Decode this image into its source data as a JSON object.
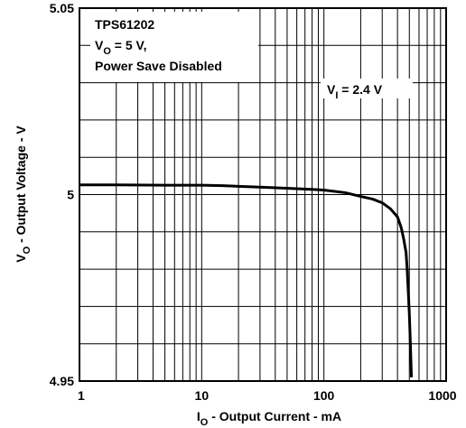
{
  "chart_data": {
    "type": "line",
    "title": "",
    "x_scale": "log",
    "xlim": [
      1,
      1000
    ],
    "ylim": [
      4.95,
      5.05
    ],
    "x_ticks": [
      {
        "value": 1,
        "label": "1"
      },
      {
        "value": 10,
        "label": "10"
      },
      {
        "value": 100,
        "label": "100"
      },
      {
        "value": 1000,
        "label": "1000"
      }
    ],
    "y_ticks": [
      {
        "value": 5.05,
        "label": "5.05"
      },
      {
        "value": 5,
        "label": "5"
      },
      {
        "value": 4.95,
        "label": "4.95"
      }
    ],
    "xlabel": {
      "main": "I",
      "sub": "O",
      "rest": " - Output Current - mA"
    },
    "ylabel": {
      "main": "V",
      "sub": "O",
      "rest": " - Output Voltage - V"
    },
    "grid": true,
    "annotations": {
      "title_box": {
        "line1": "TPS61202",
        "line2_main": "V",
        "line2_sub": "O",
        "line2_rest": " = 5 V,",
        "line3": "Power Save Disabled"
      },
      "series_label": {
        "main": "V",
        "sub": "I",
        "rest": " = 2.4 V"
      }
    },
    "series": [
      {
        "x": [
          1,
          2,
          5,
          10,
          15,
          20,
          30,
          50,
          80,
          100,
          150,
          200,
          250,
          300,
          350,
          400,
          430,
          450,
          470,
          480,
          490,
          500,
          510,
          520
        ],
        "y": [
          5.0026,
          5.0026,
          5.0025,
          5.0025,
          5.0024,
          5.0022,
          5.002,
          5.0017,
          5.0014,
          5.0012,
          5.0005,
          4.9995,
          4.9988,
          4.9978,
          4.9962,
          4.994,
          4.991,
          4.988,
          4.9845,
          4.98,
          4.974,
          4.968,
          4.96,
          4.951
        ]
      }
    ]
  }
}
